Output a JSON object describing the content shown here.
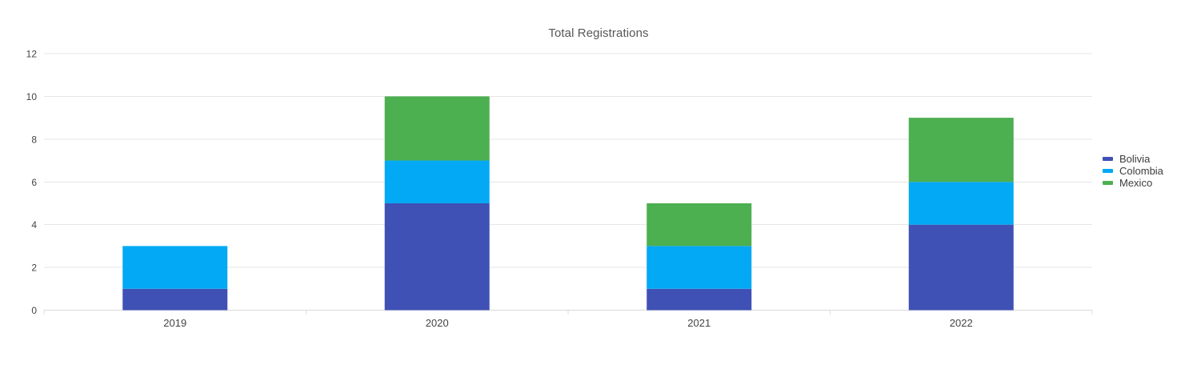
{
  "chart_data": {
    "type": "bar",
    "stacked": true,
    "orientation": "vertical",
    "title": "Total Registrations",
    "categories": [
      "2019",
      "2020",
      "2021",
      "2022"
    ],
    "series": [
      {
        "name": "Bolivia",
        "color": "#3F51B5",
        "values": [
          1,
          5,
          1,
          4
        ]
      },
      {
        "name": "Colombia",
        "color": "#03A9F4",
        "values": [
          2,
          2,
          2,
          2
        ]
      },
      {
        "name": "Mexico",
        "color": "#4CAF50",
        "values": [
          0,
          3,
          2,
          3
        ]
      }
    ],
    "stack_totals": [
      3,
      10,
      5,
      9
    ],
    "xlabel": "",
    "ylabel": "",
    "ylim": [
      0,
      12
    ],
    "yticks": [
      0,
      2,
      4,
      6,
      8,
      10,
      12
    ],
    "grid": true,
    "legend_position": "right"
  },
  "style": {
    "background": "#ffffff",
    "title_color": "#555759",
    "axis_label_color": "#444444",
    "legend_text_color": "#3c3c3c",
    "gridline_color": "#e6e6e6",
    "baseline_color": "#d9d9d9",
    "tick_color": "#dcdcdc"
  }
}
